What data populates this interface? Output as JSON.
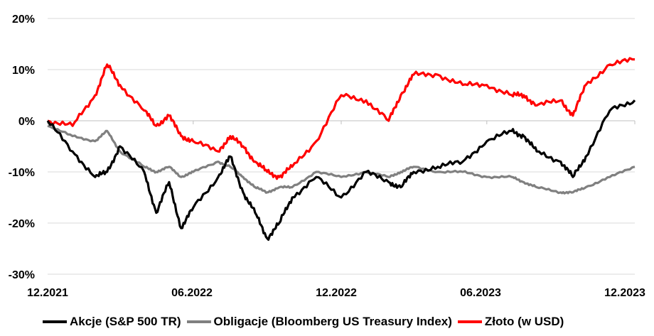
{
  "chart_data": {
    "type": "line",
    "title": "",
    "xlabel": "",
    "ylabel": "",
    "x_tick_labels": [
      "12.2021",
      "06.2022",
      "12.2022",
      "06.2023",
      "12.2023"
    ],
    "y_tick_labels": [
      "20%",
      "10%",
      "0%",
      "-10%",
      "-20%",
      "-30%"
    ],
    "y_tick_values": [
      20,
      10,
      0,
      -10,
      -20,
      -30
    ],
    "ylim": [
      -30,
      20
    ],
    "grid": "horizontal",
    "legend_position": "bottom",
    "x_dates": [
      "2021-12-31",
      "2022-01-31",
      "2022-02-28",
      "2022-03-15",
      "2022-03-31",
      "2022-04-30",
      "2022-05-15",
      "2022-05-31",
      "2022-06-15",
      "2022-06-30",
      "2022-07-31",
      "2022-08-15",
      "2022-08-31",
      "2022-09-15",
      "2022-09-30",
      "2022-10-15",
      "2022-10-31",
      "2022-11-30",
      "2022-12-31",
      "2023-01-31",
      "2023-02-28",
      "2023-03-15",
      "2023-03-31",
      "2023-04-30",
      "2023-05-31",
      "2023-06-30",
      "2023-07-31",
      "2023-08-15",
      "2023-08-31",
      "2023-09-30",
      "2023-10-15",
      "2023-10-31",
      "2023-11-30",
      "2023-12-31"
    ],
    "series": [
      {
        "name": "Akcje (S&P 500 TR)",
        "color": "#000000",
        "values": [
          0,
          -6,
          -11,
          -10,
          -5,
          -10,
          -18,
          -12,
          -21,
          -17,
          -11,
          -7,
          -14,
          -18,
          -23,
          -20,
          -15,
          -11,
          -15,
          -10,
          -12,
          -13,
          -10,
          -9,
          -8,
          -4,
          -2,
          -3,
          -6,
          -8,
          -11,
          -7,
          2,
          4
        ]
      },
      {
        "name": "Obligacje (Bloomberg US Treasury Index)",
        "color": "#808080",
        "values": [
          -1,
          -3,
          -4,
          -2,
          -6,
          -9,
          -10,
          -9,
          -11,
          -10,
          -8,
          -9,
          -11,
          -13,
          -14,
          -13,
          -13,
          -10,
          -11,
          -10,
          -11,
          -10,
          -9,
          -10,
          -10,
          -11,
          -11,
          -12,
          -13,
          -14,
          -14,
          -13,
          -11,
          -9
        ]
      },
      {
        "name": "Złoto (w USD)",
        "color": "#ff0000",
        "values": [
          0,
          -1,
          5,
          11,
          7,
          2,
          -1,
          1,
          -3,
          -4,
          -6,
          -3,
          -5,
          -8,
          -10,
          -11,
          -9,
          -4,
          5,
          4,
          0,
          5,
          9,
          9,
          7,
          7,
          5,
          5,
          3,
          4,
          1,
          7,
          11,
          12
        ]
      }
    ]
  }
}
